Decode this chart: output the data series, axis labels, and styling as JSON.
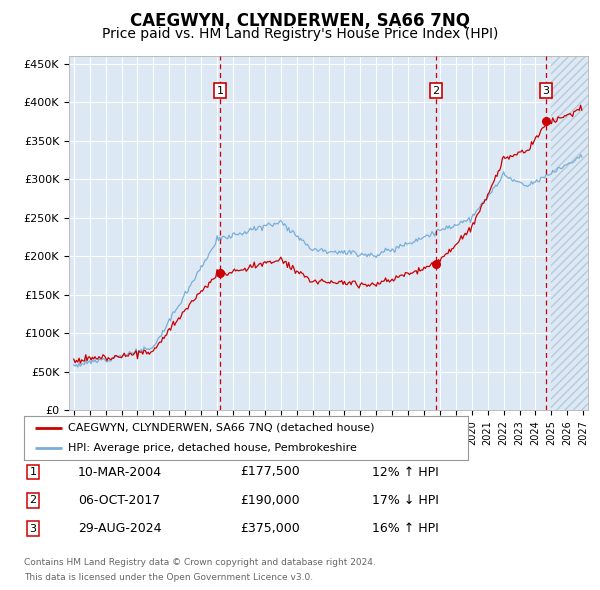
{
  "title": "CAEGWYN, CLYNDERWEN, SA66 7NQ",
  "subtitle": "Price paid vs. HM Land Registry's House Price Index (HPI)",
  "hpi_label": "HPI: Average price, detached house, Pembrokeshire",
  "price_label": "CAEGWYN, CLYNDERWEN, SA66 7NQ (detached house)",
  "footer_line1": "Contains HM Land Registry data © Crown copyright and database right 2024.",
  "footer_line2": "This data is licensed under the Open Government Licence v3.0.",
  "sales": [
    {
      "num": 1,
      "date": "10-MAR-2004",
      "price": "£177,500",
      "hpi": "12% ↑ HPI",
      "year": 2004.19
    },
    {
      "num": 2,
      "date": "06-OCT-2017",
      "price": "£190,000",
      "hpi": "17% ↓ HPI",
      "year": 2017.76
    },
    {
      "num": 3,
      "date": "29-AUG-2024",
      "price": "£375,000",
      "hpi": "16% ↑ HPI",
      "year": 2024.66
    }
  ],
  "sale_prices": [
    177500,
    190000,
    375000
  ],
  "sale_years": [
    2004.19,
    2017.76,
    2024.66
  ],
  "ylim": [
    0,
    460000
  ],
  "yticks": [
    0,
    50000,
    100000,
    150000,
    200000,
    250000,
    300000,
    350000,
    400000,
    450000
  ],
  "xlim_start": 1994.7,
  "xlim_end": 2027.3,
  "background_color": "#dce9f5",
  "grid_color": "#ffffff",
  "red_line_color": "#cc0000",
  "blue_line_color": "#7aaed6",
  "title_fontsize": 12,
  "subtitle_fontsize": 10
}
